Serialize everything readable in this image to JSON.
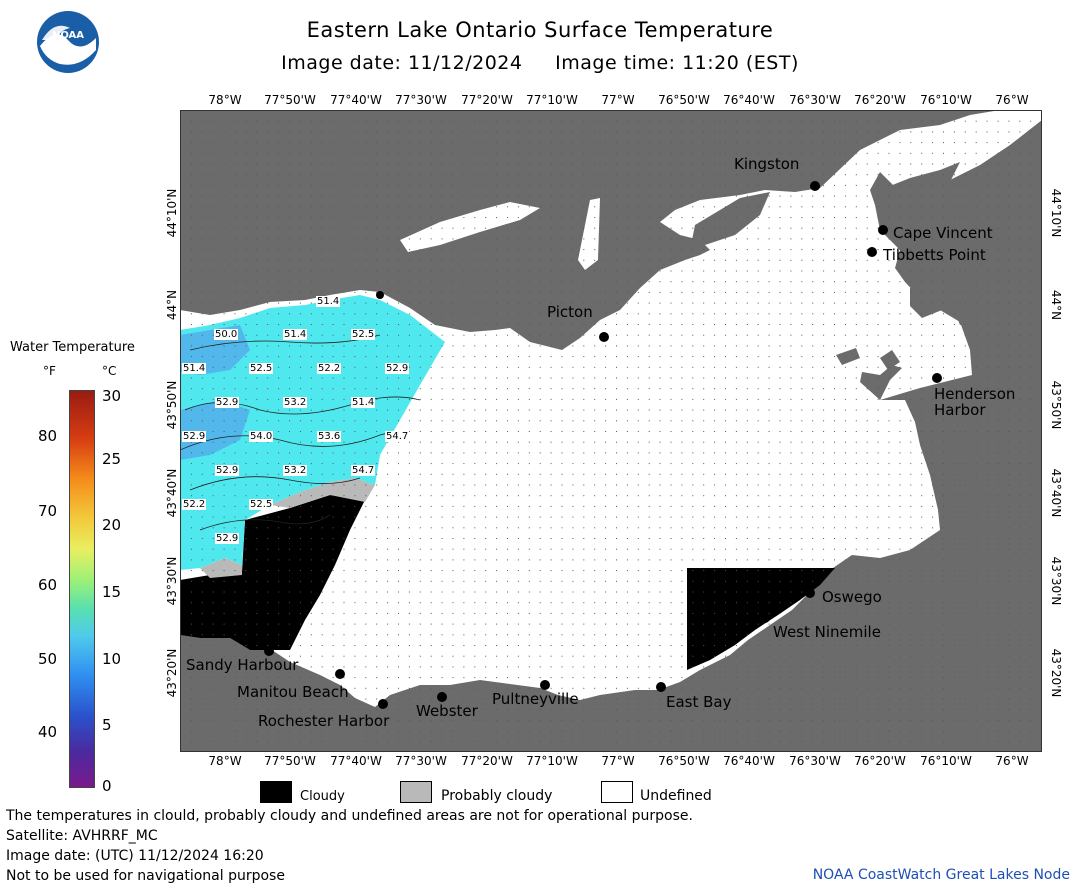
{
  "header": {
    "title": "Eastern Lake Ontario Surface Temperature",
    "subtitle": "Image date: 11/12/2024     Image time: 11:20 (EST)",
    "logo_text": "NOAA"
  },
  "axes": {
    "lon_labels": [
      "78°W",
      "77°50'W",
      "77°40'W",
      "77°30'W",
      "77°20'W",
      "77°10'W",
      "77°W",
      "76°50'W",
      "76°40'W",
      "76°30'W",
      "76°20'W",
      "76°10'W",
      "76°W"
    ],
    "lat_labels": [
      "44°10'N",
      "44°N",
      "43°50'N",
      "43°40'N",
      "43°30'N",
      "43°20'N"
    ]
  },
  "places": {
    "kingston": "Kingston",
    "cape_vincent": "Cape Vincent",
    "tibbetts_point": "Tibbetts Point",
    "picton": "Picton",
    "henderson_harbor": "Henderson\nHarbor",
    "oswego": "Oswego",
    "west_ninemile": "West Ninemile",
    "sandy_harbour": "Sandy Harbour",
    "manitou_beach": "Manitou Beach",
    "rochester_harbor": "Rochester Harbor",
    "webster": "Webster",
    "pultneyville": "Pultneyville",
    "east_bay": "East Bay"
  },
  "temperature_labels": [
    "51.4",
    "50.0",
    "51.4",
    "52.5",
    "51.4",
    "52.5",
    "52.2",
    "52.9",
    "52.9",
    "53.2",
    "51.4",
    "52.9",
    "54.0",
    "53.6",
    "54.7",
    "52.9",
    "53.2",
    "54.7",
    "52.2",
    "52.5",
    "52.9"
  ],
  "colorbar": {
    "title": "Water Temperature",
    "unit_f": "°F",
    "unit_c": "°C",
    "f_ticks": [
      "80",
      "70",
      "60",
      "50",
      "40"
    ],
    "c_ticks": [
      "30",
      "25",
      "20",
      "15",
      "10",
      "5",
      "0"
    ]
  },
  "legend": {
    "cloudy": "Cloudy",
    "probably_cloudy": "Probably cloudy",
    "undefined": "Undefined"
  },
  "colors": {
    "land": "#6b6b6b",
    "cloudy": "#000000",
    "probably_cloudy": "#b9b9b9",
    "undefined": "#ffffff",
    "water_warm": "#4fe8ee",
    "water_cool": "#52b8ec",
    "noaa_blue": "#1a5ea8"
  },
  "footer": {
    "line1": "The temperatures in clould, probably cloudy and undefined areas are not for operational purpose.",
    "line2": "Satellite: AVHRRF_MC",
    "line3": "Image date: (UTC) 11/12/2024  16:20",
    "line4": "Not to be used for navigational purpose",
    "credit": "NOAA CoastWatch Great Lakes Node"
  }
}
